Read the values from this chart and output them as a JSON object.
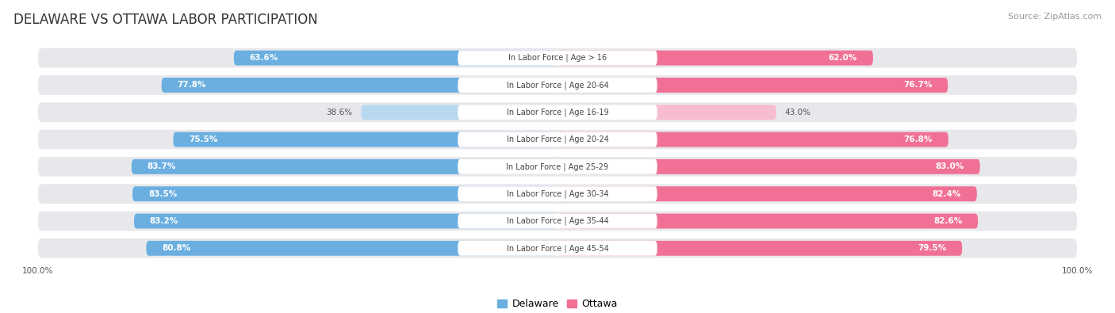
{
  "title": "DELAWARE VS OTTAWA LABOR PARTICIPATION",
  "source": "Source: ZipAtlas.com",
  "categories": [
    "In Labor Force | Age > 16",
    "In Labor Force | Age 20-64",
    "In Labor Force | Age 16-19",
    "In Labor Force | Age 20-24",
    "In Labor Force | Age 25-29",
    "In Labor Force | Age 30-34",
    "In Labor Force | Age 35-44",
    "In Labor Force | Age 45-54"
  ],
  "delaware_values": [
    63.6,
    77.8,
    38.6,
    75.5,
    83.7,
    83.5,
    83.2,
    80.8
  ],
  "ottawa_values": [
    62.0,
    76.7,
    43.0,
    76.8,
    83.0,
    82.4,
    82.6,
    79.5
  ],
  "delaware_color": "#6aafe0",
  "delaware_color_light": "#b8d8f0",
  "ottawa_color": "#f07096",
  "ottawa_color_light": "#f8bcd0",
  "background_color": "#ffffff",
  "row_bg_color": "#e8e8ec",
  "label_bg_color": "#ffffff",
  "max_value": 100.0,
  "figsize": [
    14.06,
    3.95
  ],
  "dpi": 100,
  "title_fontsize": 12,
  "source_fontsize": 8,
  "value_fontsize": 7.5,
  "cat_fontsize": 7,
  "legend_fontsize": 9
}
